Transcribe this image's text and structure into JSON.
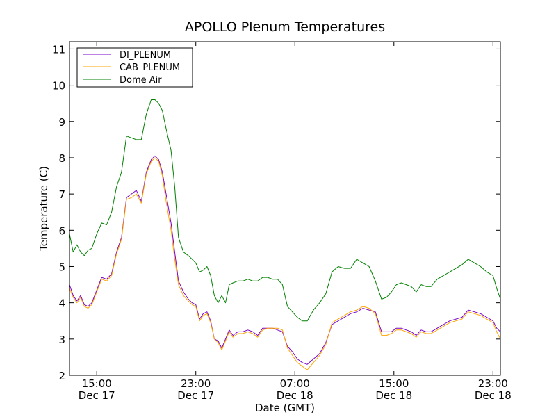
{
  "chart_data": {
    "type": "line",
    "title": "APOLLO Plenum Temperatures",
    "xlabel": "Date (GMT)",
    "ylabel": "Temperature (C)",
    "xlim": [
      12.8,
      47.6
    ],
    "ylim": [
      2,
      11.2
    ],
    "x_unit": "hours since 00:00 Dec 17 (GMT)",
    "grid": false,
    "legend_position": "top-left",
    "x_ticks": [
      {
        "value": 15,
        "time": "15:00",
        "date": "Dec 17"
      },
      {
        "value": 23,
        "time": "23:00",
        "date": "Dec 17"
      },
      {
        "value": 31,
        "time": "07:00",
        "date": "Dec 18"
      },
      {
        "value": 39,
        "time": "15:00",
        "date": "Dec 18"
      },
      {
        "value": 47,
        "time": "23:00",
        "date": "Dec 18"
      }
    ],
    "y_ticks": [
      {
        "value": 2,
        "label": "2"
      },
      {
        "value": 3,
        "label": "3"
      },
      {
        "value": 4,
        "label": "4"
      },
      {
        "value": 5,
        "label": "5"
      },
      {
        "value": 6,
        "label": "6"
      },
      {
        "value": 7,
        "label": "7"
      },
      {
        "value": 8,
        "label": "8"
      },
      {
        "value": 9,
        "label": "9"
      },
      {
        "value": 10,
        "label": "10"
      },
      {
        "value": 11,
        "label": "11"
      }
    ],
    "series": [
      {
        "name": "DI_PLENUM",
        "color": "#7b00c8",
        "x": [
          12.8,
          13.1,
          13.4,
          13.7,
          14.0,
          14.3,
          14.6,
          15.0,
          15.4,
          15.8,
          16.2,
          16.6,
          17.0,
          17.4,
          17.8,
          18.2,
          18.6,
          19.0,
          19.4,
          19.7,
          20.0,
          20.3,
          20.6,
          21.0,
          21.3,
          21.6,
          22.0,
          22.4,
          22.7,
          23.0,
          23.3,
          23.6,
          23.9,
          24.2,
          24.5,
          24.8,
          25.1,
          25.4,
          25.7,
          26.0,
          26.4,
          26.8,
          27.2,
          27.6,
          28.0,
          28.4,
          28.8,
          29.2,
          29.6,
          30.0,
          30.4,
          30.8,
          31.2,
          31.6,
          32.0,
          32.5,
          33.0,
          33.5,
          34.0,
          34.5,
          35.0,
          35.5,
          36.0,
          36.5,
          37.0,
          37.5,
          38.0,
          38.4,
          38.8,
          39.2,
          39.6,
          40.0,
          40.4,
          40.8,
          41.2,
          41.6,
          42.0,
          42.5,
          43.0,
          43.5,
          44.0,
          44.5,
          45.0,
          45.5,
          46.0,
          46.5,
          47.0,
          47.3,
          47.6
        ],
        "y": [
          4.5,
          4.2,
          4.05,
          4.2,
          3.95,
          3.9,
          4.0,
          4.35,
          4.7,
          4.65,
          4.8,
          5.4,
          5.8,
          6.9,
          7.0,
          7.1,
          6.8,
          7.6,
          7.95,
          8.05,
          7.95,
          7.6,
          7.0,
          6.2,
          5.4,
          4.6,
          4.3,
          4.1,
          4.0,
          3.95,
          3.55,
          3.7,
          3.75,
          3.5,
          3.0,
          2.95,
          2.75,
          3.0,
          3.25,
          3.1,
          3.2,
          3.2,
          3.25,
          3.2,
          3.1,
          3.3,
          3.3,
          3.3,
          3.25,
          3.2,
          2.8,
          2.65,
          2.45,
          2.35,
          2.3,
          2.45,
          2.6,
          2.9,
          3.4,
          3.5,
          3.6,
          3.7,
          3.75,
          3.85,
          3.8,
          3.75,
          3.2,
          3.2,
          3.2,
          3.3,
          3.3,
          3.25,
          3.2,
          3.1,
          3.25,
          3.2,
          3.2,
          3.3,
          3.4,
          3.5,
          3.55,
          3.6,
          3.8,
          3.75,
          3.7,
          3.6,
          3.5,
          3.3,
          3.2
        ]
      },
      {
        "name": "CAB_PLENUM",
        "color": "#ffa500",
        "x": [
          12.8,
          13.1,
          13.4,
          13.7,
          14.0,
          14.3,
          14.6,
          15.0,
          15.4,
          15.8,
          16.2,
          16.6,
          17.0,
          17.4,
          17.8,
          18.2,
          18.6,
          19.0,
          19.4,
          19.7,
          20.0,
          20.3,
          20.6,
          21.0,
          21.3,
          21.6,
          22.0,
          22.4,
          22.7,
          23.0,
          23.3,
          23.6,
          23.9,
          24.2,
          24.5,
          24.8,
          25.1,
          25.4,
          25.7,
          26.0,
          26.4,
          26.8,
          27.2,
          27.6,
          28.0,
          28.4,
          28.8,
          29.2,
          29.6,
          30.0,
          30.4,
          30.8,
          31.2,
          31.6,
          32.0,
          32.5,
          33.0,
          33.5,
          34.0,
          34.5,
          35.0,
          35.5,
          36.0,
          36.5,
          37.0,
          37.5,
          38.0,
          38.4,
          38.8,
          39.2,
          39.6,
          40.0,
          40.4,
          40.8,
          41.2,
          41.6,
          42.0,
          42.5,
          43.0,
          43.5,
          44.0,
          44.5,
          45.0,
          45.5,
          46.0,
          46.5,
          47.0,
          47.3,
          47.6
        ],
        "y": [
          4.4,
          4.15,
          4.0,
          4.15,
          3.9,
          3.85,
          3.95,
          4.3,
          4.65,
          4.6,
          4.75,
          5.35,
          5.75,
          6.85,
          6.9,
          7.0,
          6.75,
          7.55,
          7.9,
          8.0,
          7.9,
          7.5,
          6.8,
          6.0,
          5.2,
          4.5,
          4.2,
          4.05,
          3.95,
          3.9,
          3.5,
          3.65,
          3.7,
          3.45,
          3.0,
          2.9,
          2.7,
          2.95,
          3.2,
          3.05,
          3.15,
          3.15,
          3.2,
          3.15,
          3.05,
          3.25,
          3.3,
          3.3,
          3.3,
          3.25,
          2.75,
          2.55,
          2.35,
          2.25,
          2.15,
          2.35,
          2.55,
          2.85,
          3.45,
          3.55,
          3.65,
          3.75,
          3.8,
          3.9,
          3.85,
          3.7,
          3.1,
          3.1,
          3.15,
          3.25,
          3.25,
          3.2,
          3.15,
          3.05,
          3.2,
          3.15,
          3.15,
          3.25,
          3.35,
          3.45,
          3.5,
          3.55,
          3.75,
          3.7,
          3.65,
          3.55,
          3.45,
          3.2,
          3.0
        ]
      },
      {
        "name": "Dome Air",
        "color": "#008000",
        "x": [
          12.8,
          13.1,
          13.4,
          13.7,
          14.0,
          14.3,
          14.6,
          15.0,
          15.4,
          15.8,
          16.2,
          16.6,
          17.0,
          17.4,
          17.8,
          18.2,
          18.6,
          19.0,
          19.4,
          19.7,
          20.0,
          20.3,
          20.6,
          21.0,
          21.3,
          21.6,
          22.0,
          22.4,
          22.7,
          23.0,
          23.3,
          23.6,
          23.9,
          24.2,
          24.5,
          24.8,
          25.1,
          25.4,
          25.7,
          26.0,
          26.4,
          26.8,
          27.2,
          27.6,
          28.0,
          28.4,
          28.8,
          29.2,
          29.6,
          30.0,
          30.4,
          30.8,
          31.2,
          31.6,
          32.0,
          32.5,
          33.0,
          33.5,
          34.0,
          34.5,
          35.0,
          35.5,
          36.0,
          36.5,
          37.0,
          37.5,
          38.0,
          38.4,
          38.8,
          39.2,
          39.6,
          40.0,
          40.4,
          40.8,
          41.2,
          41.6,
          42.0,
          42.5,
          43.0,
          43.5,
          44.0,
          44.5,
          45.0,
          45.5,
          46.0,
          46.5,
          47.0,
          47.3,
          47.6
        ],
        "y": [
          5.9,
          5.4,
          5.6,
          5.4,
          5.3,
          5.45,
          5.5,
          5.9,
          6.2,
          6.15,
          6.5,
          7.2,
          7.6,
          8.6,
          8.55,
          8.5,
          8.5,
          9.2,
          9.6,
          9.6,
          9.5,
          9.3,
          8.8,
          8.2,
          7.2,
          5.8,
          5.4,
          5.3,
          5.2,
          5.1,
          4.85,
          4.9,
          5.0,
          4.75,
          4.2,
          4.0,
          4.2,
          4.0,
          4.5,
          4.55,
          4.6,
          4.6,
          4.65,
          4.6,
          4.6,
          4.7,
          4.7,
          4.65,
          4.65,
          4.5,
          3.9,
          3.75,
          3.6,
          3.5,
          3.5,
          3.8,
          4.0,
          4.25,
          4.85,
          5.0,
          4.95,
          4.95,
          5.2,
          5.1,
          5.0,
          4.6,
          4.1,
          4.15,
          4.3,
          4.5,
          4.55,
          4.5,
          4.45,
          4.3,
          4.5,
          4.45,
          4.45,
          4.65,
          4.75,
          4.85,
          4.95,
          5.05,
          5.2,
          5.1,
          5.0,
          4.85,
          4.75,
          4.4,
          4.1
        ]
      }
    ]
  }
}
